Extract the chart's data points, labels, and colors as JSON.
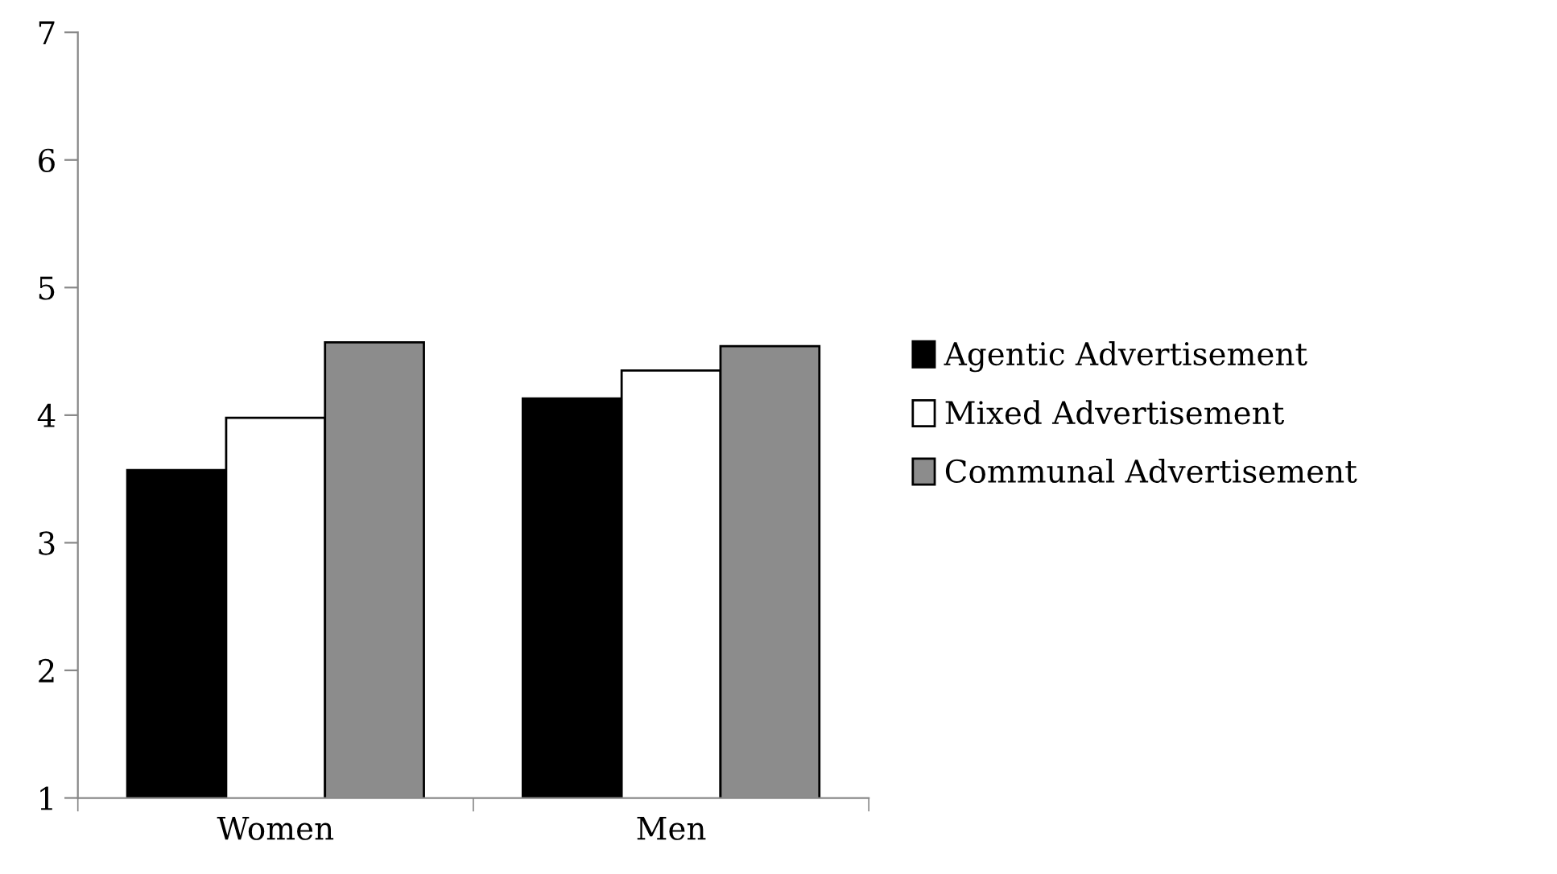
{
  "chart_data": {
    "type": "bar",
    "categories": [
      "Women",
      "Men"
    ],
    "series": [
      {
        "name": "Agentic Advertisement",
        "color": "#000000",
        "values": [
          3.57,
          4.13
        ]
      },
      {
        "name": "Mixed Advertisement",
        "color": "#ffffff",
        "values": [
          3.98,
          4.35
        ]
      },
      {
        "name": "Communal Advertisement",
        "color": "#8c8c8c",
        "values": [
          4.57,
          4.54
        ]
      }
    ],
    "ylim": [
      1,
      7
    ],
    "yticks": [
      1,
      2,
      3,
      4,
      5,
      6,
      7
    ],
    "grid": false,
    "legend": "right"
  }
}
